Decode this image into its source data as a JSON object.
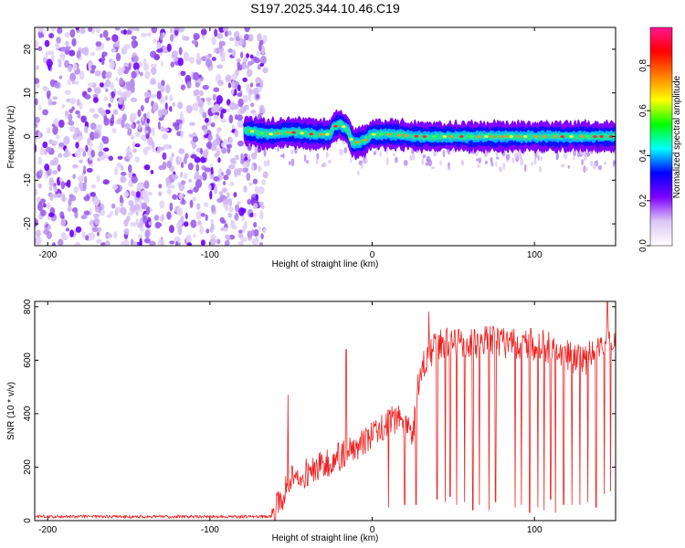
{
  "title": "S197.2025.344.10.46.C19",
  "chart_data": [
    {
      "type": "heatmap",
      "name": "spectrogram",
      "xlabel": "Height of straight line (km)",
      "ylabel": "Frequency (Hz)",
      "xlim": [
        -208,
        150
      ],
      "ylim": [
        -25,
        25
      ],
      "xticks": [
        -200,
        -100,
        0,
        100
      ],
      "xtick_labels": [
        "-200",
        "-100",
        "0",
        "100"
      ],
      "yticks": [
        -20,
        -10,
        0,
        10,
        20
      ],
      "ytick_labels": [
        "-20",
        "-10",
        "0",
        "10",
        "20"
      ],
      "noise_region_x": [
        -208,
        -70
      ],
      "signal_region_x": [
        -78,
        150
      ],
      "signal_line_freq": [
        {
          "x": -78,
          "y": 1.5
        },
        {
          "x": -65,
          "y": 0.5
        },
        {
          "x": -50,
          "y": 1
        },
        {
          "x": -35,
          "y": 0.5
        },
        {
          "x": -26,
          "y": 0.5
        },
        {
          "x": -24,
          "y": 2
        },
        {
          "x": -20,
          "y": 3
        },
        {
          "x": -15,
          "y": 1.5
        },
        {
          "x": -12,
          "y": -1.5
        },
        {
          "x": -5,
          "y": -1
        },
        {
          "x": 0,
          "y": 0.5
        },
        {
          "x": 10,
          "y": 0.5
        },
        {
          "x": 30,
          "y": 0
        },
        {
          "x": 60,
          "y": 0
        },
        {
          "x": 100,
          "y": 0
        },
        {
          "x": 150,
          "y": 0
        }
      ],
      "colorbar": {
        "label": "Normalized spectral amplitude",
        "range": [
          0,
          0.97
        ],
        "ticks": [
          0.0,
          0.2,
          0.4,
          0.6,
          0.8
        ],
        "tick_labels": [
          "0.0",
          "0.2",
          "0.4",
          "0.6",
          "0.8"
        ],
        "colors": [
          "#ffffff",
          "#dcc8f5",
          "#7f00ff",
          "#0000ff",
          "#00ffff",
          "#00ff00",
          "#ffff00",
          "#ff8000",
          "#ff0000",
          "#ff1493"
        ]
      }
    },
    {
      "type": "line",
      "name": "snr",
      "xlabel": "Height of straight line (km)",
      "ylabel": "SNR (10 * v/v)",
      "xlim": [
        -208,
        150
      ],
      "ylim": [
        0,
        820
      ],
      "xticks": [
        -200,
        -100,
        0,
        100
      ],
      "xtick_labels": [
        "-200",
        "-100",
        "0",
        "100"
      ],
      "yticks": [
        0,
        200,
        400,
        600,
        800
      ],
      "ytick_labels": [
        "0",
        "200",
        "400",
        "600",
        "800"
      ],
      "color": "#ee2222",
      "envelope": [
        {
          "x": -208,
          "y": 15
        },
        {
          "x": -62,
          "y": 15
        },
        {
          "x": -58,
          "y": 60
        },
        {
          "x": -50,
          "y": 150
        },
        {
          "x": -30,
          "y": 210
        },
        {
          "x": -10,
          "y": 270
        },
        {
          "x": 5,
          "y": 340
        },
        {
          "x": 15,
          "y": 385
        },
        {
          "x": 25,
          "y": 330
        },
        {
          "x": 30,
          "y": 580
        },
        {
          "x": 40,
          "y": 660
        },
        {
          "x": 70,
          "y": 670
        },
        {
          "x": 100,
          "y": 660
        },
        {
          "x": 115,
          "y": 640
        },
        {
          "x": 130,
          "y": 590
        },
        {
          "x": 140,
          "y": 660
        },
        {
          "x": 150,
          "y": 690
        }
      ],
      "spikes": [
        {
          "x": -52,
          "y": 470
        },
        {
          "x": -16,
          "y": 640
        },
        {
          "x": 35,
          "y": 780
        },
        {
          "x": 45,
          "y": 810
        },
        {
          "x": 128,
          "y": 770
        },
        {
          "x": 145,
          "y": 820
        }
      ],
      "dropouts": [
        {
          "x": 10,
          "y": 50
        },
        {
          "x": 20,
          "y": 60
        },
        {
          "x": 27,
          "y": 60
        },
        {
          "x": 40,
          "y": 80
        },
        {
          "x": 45,
          "y": 70
        },
        {
          "x": 48,
          "y": 90
        },
        {
          "x": 52,
          "y": 60
        },
        {
          "x": 57,
          "y": 70
        },
        {
          "x": 62,
          "y": 40
        },
        {
          "x": 66,
          "y": 60
        },
        {
          "x": 72,
          "y": 40
        },
        {
          "x": 76,
          "y": 70
        },
        {
          "x": 88,
          "y": 50
        },
        {
          "x": 92,
          "y": 60
        },
        {
          "x": 97,
          "y": 30
        },
        {
          "x": 102,
          "y": 50
        },
        {
          "x": 106,
          "y": 40
        },
        {
          "x": 110,
          "y": 80
        },
        {
          "x": 113,
          "y": 30
        },
        {
          "x": 118,
          "y": 60
        },
        {
          "x": 123,
          "y": 60
        },
        {
          "x": 128,
          "y": 60
        },
        {
          "x": 133,
          "y": 70
        },
        {
          "x": 138,
          "y": 50
        },
        {
          "x": 143,
          "y": 100
        },
        {
          "x": 147,
          "y": 110
        }
      ]
    }
  ]
}
